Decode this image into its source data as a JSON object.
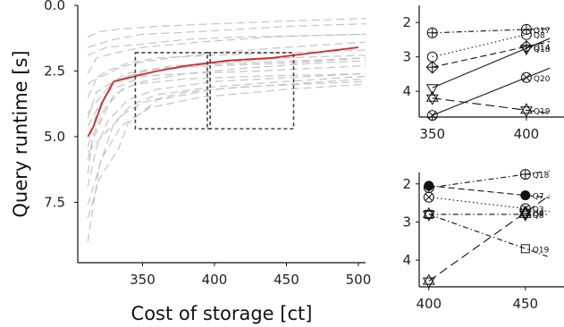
{
  "chart_data": [
    {
      "type": "line",
      "title": "",
      "xlabel": "Cost of storage [ct]",
      "ylabel": "Query runtime [s]",
      "xlim": [
        305,
        505
      ],
      "ylim": [
        0,
        9.8
      ],
      "y_inverted": true,
      "xticks": [
        "350",
        "400",
        "450",
        "500"
      ],
      "yticks": [
        "0.0",
        "2.5",
        "5.0",
        "7.5"
      ],
      "grid": false,
      "highlight": {
        "color": "#d62728",
        "x": [
          312,
          316,
          322,
          330,
          345,
          360,
          380,
          410,
          440,
          470,
          500
        ],
        "y": [
          5.0,
          4.6,
          3.7,
          2.9,
          2.7,
          2.5,
          2.3,
          2.1,
          2.0,
          1.8,
          1.6
        ]
      },
      "background_series": [
        {
          "x": [
            312,
            318,
            326,
            333,
            345,
            370,
            400,
            450,
            505
          ],
          "y": [
            3.5,
            2.8,
            2.6,
            2.4,
            2.2,
            2.0,
            1.8,
            1.6,
            1.4
          ]
        },
        {
          "x": [
            312,
            322,
            330,
            340,
            360,
            400,
            450,
            505
          ],
          "y": [
            4.1,
            3.4,
            2.9,
            2.7,
            2.5,
            2.2,
            2.0,
            1.9
          ]
        },
        {
          "x": [
            312,
            320,
            328,
            338,
            350,
            380,
            420,
            470,
            505
          ],
          "y": [
            4.6,
            3.8,
            3.2,
            3.0,
            2.7,
            2.6,
            2.4,
            2.2,
            2.1
          ]
        },
        {
          "x": [
            312,
            315,
            322,
            330,
            345,
            380,
            430,
            505
          ],
          "y": [
            6.4,
            5.2,
            4.3,
            3.4,
            3.0,
            2.8,
            2.7,
            2.6
          ]
        },
        {
          "x": [
            312,
            320,
            330,
            342,
            360,
            400,
            450,
            505
          ],
          "y": [
            9.0,
            6.1,
            4.5,
            3.8,
            3.4,
            3.1,
            2.9,
            2.7
          ]
        },
        {
          "x": [
            312,
            325,
            338,
            350,
            380,
            420,
            505
          ],
          "y": [
            5.6,
            4.8,
            4.1,
            3.7,
            3.3,
            3.1,
            2.9
          ]
        },
        {
          "x": [
            312,
            318,
            332,
            350,
            390,
            440,
            505
          ],
          "y": [
            2.6,
            2.0,
            1.8,
            1.6,
            1.4,
            1.2,
            1.1
          ]
        },
        {
          "x": [
            312,
            330,
            350,
            390,
            450,
            505
          ],
          "y": [
            1.6,
            1.3,
            1.1,
            1.0,
            0.8,
            0.7
          ]
        },
        {
          "x": [
            312,
            320,
            335,
            360,
            400,
            450,
            505
          ],
          "y": [
            1.2,
            1.0,
            0.9,
            0.8,
            0.7,
            0.6,
            0.5
          ]
        },
        {
          "x": [
            312,
            322,
            335,
            355,
            390,
            450,
            505
          ],
          "y": [
            7.6,
            5.8,
            4.6,
            3.9,
            3.5,
            3.2,
            3.0
          ]
        },
        {
          "x": [
            312,
            325,
            340,
            360,
            400,
            505
          ],
          "y": [
            3.0,
            2.5,
            2.2,
            2.0,
            1.9,
            1.7
          ]
        },
        {
          "x": [
            312,
            318,
            328,
            338,
            360,
            400,
            450,
            505
          ],
          "y": [
            5.4,
            4.1,
            3.0,
            2.6,
            2.4,
            2.3,
            2.2,
            2.0
          ]
        },
        {
          "x": [
            312,
            320,
            333,
            340,
            360,
            400,
            450,
            505
          ],
          "y": [
            8.1,
            6.6,
            5.5,
            4.5,
            3.6,
            3.2,
            3.0,
            2.8
          ]
        },
        {
          "x": [
            312,
            316,
            324,
            336,
            350,
            380,
            430,
            505
          ],
          "y": [
            5.9,
            4.9,
            3.9,
            3.2,
            2.9,
            2.6,
            2.5,
            2.3
          ]
        },
        {
          "x": [
            312,
            318,
            330,
            345,
            370,
            420,
            505
          ],
          "y": [
            4.3,
            3.3,
            2.9,
            2.6,
            2.3,
            2.2,
            2.0
          ]
        },
        {
          "x": [
            312,
            325,
            345,
            380,
            420,
            505
          ],
          "y": [
            1.9,
            1.6,
            1.5,
            1.3,
            1.2,
            1.1
          ]
        },
        {
          "x": [
            312,
            318,
            326,
            340,
            360,
            400,
            505
          ],
          "y": [
            6.9,
            5.4,
            4.4,
            3.6,
            3.2,
            2.9,
            2.6
          ]
        }
      ],
      "zoom_boxes": [
        {
          "x": [
            345,
            397
          ],
          "y": [
            1.8,
            4.7
          ]
        },
        {
          "x": [
            395,
            455
          ],
          "y": [
            1.8,
            4.7
          ]
        }
      ]
    },
    {
      "type": "line",
      "title": "",
      "xlabel": "",
      "ylabel": "",
      "xlim": [
        343,
        420
      ],
      "ylim": [
        1.5,
        4.75
      ],
      "y_inverted": true,
      "xticks": [
        "350",
        "400"
      ],
      "yticks": [
        "2",
        "3",
        "4"
      ],
      "queries": [
        {
          "name": "Q17",
          "marker": "circle-plus",
          "style": "dashdot",
          "y350": 2.3,
          "y400": 2.2
        },
        {
          "name": "Q8",
          "marker": "circle",
          "style": "dotted",
          "y350": 3.0,
          "y400": 2.35
        },
        {
          "name": "Q14",
          "marker": "diamond-plus",
          "style": "dashed",
          "y350": 3.3,
          "y400": 2.7
        },
        {
          "name": "Q18",
          "marker": "triangle-down",
          "style": "solid",
          "y350": 3.9,
          "y400": 2.75
        },
        {
          "name": "Q20",
          "marker": "circle-x",
          "style": "solid",
          "y350": 4.7,
          "y400": 3.6
        },
        {
          "name": "Q19",
          "marker": "hexagram",
          "style": "longdash",
          "y350": 4.2,
          "y400": 4.55
        }
      ]
    },
    {
      "type": "line",
      "title": "",
      "xlabel": "",
      "ylabel": "",
      "xlim": [
        395,
        470
      ],
      "ylim": [
        1.7,
        4.7
      ],
      "y_inverted": true,
      "xticks": [
        "400",
        "450"
      ],
      "yticks": [
        "2",
        "3",
        "4"
      ],
      "queries": [
        {
          "name": "Q18",
          "marker": "circle-plus",
          "style": "dashdot",
          "y400": 2.1,
          "y450": 1.75
        },
        {
          "name": "Q7",
          "marker": "filled-circle",
          "style": "dashed",
          "y400": 2.05,
          "y450": 2.3
        },
        {
          "name": "Q3",
          "marker": "circle-x",
          "style": "dotted",
          "y400": 2.35,
          "y450": 2.65
        },
        {
          "name": "Q8",
          "marker": "hexagram",
          "style": "dashdot",
          "y400": 2.8,
          "y450": 2.8
        },
        {
          "name": "Q19",
          "marker": "square",
          "style": "dashdot",
          "y400": 2.8,
          "y450": 3.7
        },
        {
          "name": "Q9",
          "marker": "hexagram",
          "style": "longdash",
          "y400": 4.55,
          "y450": 2.75
        }
      ]
    }
  ]
}
